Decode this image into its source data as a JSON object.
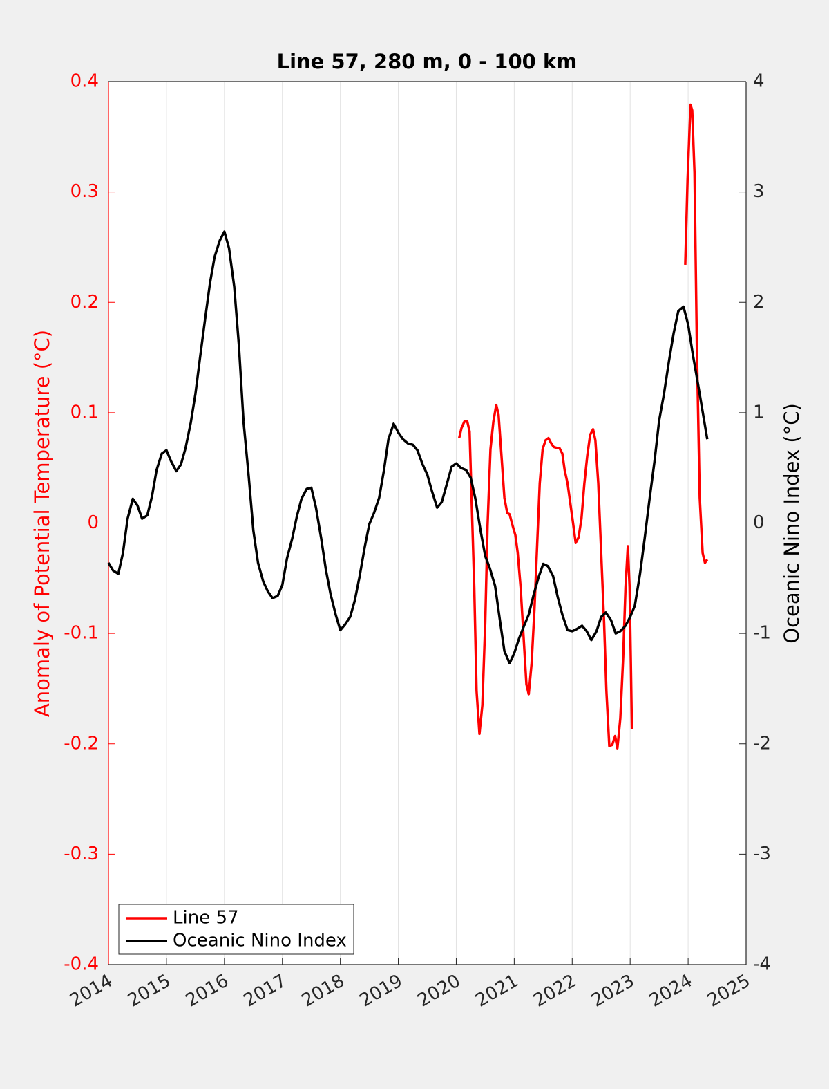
{
  "chart_data": {
    "type": "line",
    "title": "Line 57, 280 m, 0 - 100 km",
    "ylabel": "Anomaly of Potential Temperature (°C)",
    "y2label": "Oceanic Nino Index (°C)",
    "xlim": [
      2014,
      2025
    ],
    "xticks": [
      2014,
      2015,
      2016,
      2017,
      2018,
      2019,
      2020,
      2021,
      2022,
      2023,
      2024,
      2025
    ],
    "ylim": [
      -0.4,
      0.4
    ],
    "yticks": [
      -0.4,
      -0.3,
      -0.2,
      -0.1,
      0,
      0.1,
      0.2,
      0.3,
      0.4
    ],
    "y2lim": [
      -4,
      4
    ],
    "y2ticks": [
      -4,
      -3,
      -2,
      -1,
      0,
      1,
      2,
      3,
      4
    ],
    "grid": true,
    "legend": "lower left",
    "series": [
      {
        "name": "Line 57",
        "color": "#ff0000",
        "axis": "y",
        "x": [
          2020.05,
          2020.09,
          2020.14,
          2020.19,
          2020.23,
          2020.31,
          2020.35,
          2020.4,
          2020.45,
          2020.5,
          2020.54,
          2020.59,
          2020.64,
          2020.69,
          2020.73,
          2020.78,
          2020.83,
          2020.88,
          2020.92,
          2020.97,
          2021.02,
          2021.06,
          2021.11,
          2021.16,
          2021.21,
          2021.25,
          2021.3,
          2021.35,
          2021.4,
          2021.44,
          2021.49,
          2021.54,
          2021.59,
          2021.63,
          2021.68,
          2021.74,
          2021.78,
          2021.83,
          2021.87,
          2021.92,
          2021.97,
          2022.02,
          2022.06,
          2022.11,
          2022.16,
          2022.21,
          2022.26,
          2022.31,
          2022.36,
          2022.4,
          2022.45,
          2022.5,
          2022.55,
          2022.59,
          2022.64,
          2022.69,
          2022.74,
          2022.78,
          2022.83,
          2022.88,
          2022.92,
          2022.96,
          2022.99,
          2023.01,
          2023.03,
          2023.5,
          2023.95,
          2023.99,
          2024.04,
          2024.07,
          2024.11,
          2024.15,
          2024.2,
          2024.25,
          2024.29,
          2024.33
        ],
        "values": [
          0.077,
          0.086,
          0.092,
          0.092,
          0.083,
          -0.058,
          -0.152,
          -0.191,
          -0.165,
          -0.09,
          -0.002,
          0.067,
          0.092,
          0.107,
          0.098,
          0.061,
          0.023,
          0.009,
          0.008,
          -0.002,
          -0.011,
          -0.027,
          -0.058,
          -0.102,
          -0.146,
          -0.155,
          -0.127,
          -0.077,
          -0.014,
          0.036,
          0.067,
          0.075,
          0.077,
          0.073,
          0.069,
          0.068,
          0.068,
          0.063,
          0.048,
          0.036,
          0.017,
          -0.002,
          -0.018,
          -0.013,
          0.004,
          0.036,
          0.061,
          0.08,
          0.085,
          0.075,
          0.036,
          -0.027,
          -0.09,
          -0.152,
          -0.202,
          -0.201,
          -0.193,
          -0.204,
          -0.177,
          -0.121,
          -0.058,
          -0.021,
          -0.058,
          -0.121,
          -0.187,
          null,
          0.234,
          0.311,
          0.379,
          0.374,
          0.317,
          0.161,
          0.023,
          -0.027,
          -0.036,
          -0.033
        ]
      },
      {
        "name": "Oceanic Nino Index",
        "color": "#000000",
        "axis": "y2",
        "x": [
          2014.0,
          2014.08,
          2014.17,
          2014.25,
          2014.33,
          2014.42,
          2014.5,
          2014.58,
          2014.67,
          2014.75,
          2014.83,
          2014.92,
          2015.0,
          2015.08,
          2015.17,
          2015.25,
          2015.33,
          2015.42,
          2015.5,
          2015.58,
          2015.67,
          2015.75,
          2015.83,
          2015.92,
          2016.0,
          2016.08,
          2016.17,
          2016.25,
          2016.33,
          2016.42,
          2016.5,
          2016.58,
          2016.67,
          2016.75,
          2016.83,
          2016.92,
          2017.0,
          2017.08,
          2017.17,
          2017.25,
          2017.33,
          2017.42,
          2017.5,
          2017.58,
          2017.67,
          2017.75,
          2017.83,
          2017.92,
          2018.0,
          2018.08,
          2018.17,
          2018.25,
          2018.33,
          2018.42,
          2018.5,
          2018.58,
          2018.67,
          2018.75,
          2018.83,
          2018.92,
          2019.0,
          2019.08,
          2019.17,
          2019.25,
          2019.33,
          2019.42,
          2019.5,
          2019.58,
          2019.67,
          2019.75,
          2019.83,
          2019.92,
          2020.0,
          2020.08,
          2020.17,
          2020.25,
          2020.33,
          2020.42,
          2020.5,
          2020.58,
          2020.67,
          2020.75,
          2020.83,
          2020.92,
          2021.0,
          2021.08,
          2021.17,
          2021.25,
          2021.33,
          2021.42,
          2021.5,
          2021.58,
          2021.67,
          2021.75,
          2021.83,
          2021.92,
          2022.0,
          2022.08,
          2022.17,
          2022.25,
          2022.33,
          2022.42,
          2022.5,
          2022.58,
          2022.67,
          2022.75,
          2022.83,
          2022.92,
          2023.0,
          2023.08,
          2023.17,
          2023.25,
          2023.33,
          2023.42,
          2023.5,
          2023.58,
          2023.67,
          2023.75,
          2023.83,
          2023.92,
          2024.0,
          2024.08,
          2024.17,
          2024.25,
          2024.33
        ],
        "values": [
          -0.36,
          -0.43,
          -0.46,
          -0.27,
          0.04,
          0.22,
          0.16,
          0.04,
          0.07,
          0.24,
          0.48,
          0.63,
          0.66,
          0.56,
          0.47,
          0.53,
          0.68,
          0.91,
          1.17,
          1.5,
          1.86,
          2.17,
          2.41,
          2.56,
          2.64,
          2.49,
          2.14,
          1.61,
          0.92,
          0.42,
          -0.07,
          -0.36,
          -0.53,
          -0.62,
          -0.68,
          -0.66,
          -0.56,
          -0.32,
          -0.14,
          0.06,
          0.22,
          0.31,
          0.32,
          0.14,
          -0.14,
          -0.42,
          -0.64,
          -0.83,
          -0.97,
          -0.92,
          -0.85,
          -0.7,
          -0.49,
          -0.22,
          -0.01,
          0.09,
          0.23,
          0.47,
          0.76,
          0.9,
          0.82,
          0.76,
          0.72,
          0.71,
          0.66,
          0.53,
          0.44,
          0.29,
          0.14,
          0.19,
          0.34,
          0.51,
          0.54,
          0.5,
          0.48,
          0.41,
          0.22,
          -0.07,
          -0.3,
          -0.41,
          -0.57,
          -0.87,
          -1.16,
          -1.27,
          -1.18,
          -1.05,
          -0.93,
          -0.83,
          -0.66,
          -0.49,
          -0.37,
          -0.39,
          -0.48,
          -0.67,
          -0.83,
          -0.97,
          -0.98,
          -0.96,
          -0.93,
          -0.98,
          -1.06,
          -0.98,
          -0.85,
          -0.81,
          -0.88,
          -1.0,
          -0.98,
          -0.93,
          -0.85,
          -0.75,
          -0.46,
          -0.14,
          0.2,
          0.56,
          0.93,
          1.16,
          1.47,
          1.72,
          1.92,
          1.96,
          1.8,
          1.53,
          1.26,
          1.01,
          0.76
        ]
      }
    ]
  }
}
